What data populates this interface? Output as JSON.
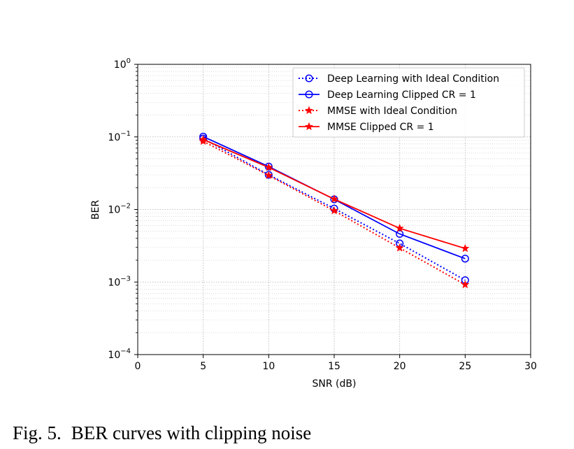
{
  "caption": {
    "label": "Fig. 5.",
    "text": "BER curves with clipping noise"
  },
  "chart_data": {
    "type": "line",
    "xlabel": "SNR (dB)",
    "ylabel": "BER",
    "xlim": [
      0,
      30
    ],
    "ylim": [
      0.0001,
      1
    ],
    "yscale": "log",
    "grid": true,
    "legend_position": "top-right",
    "x_ticks": [
      "0",
      "5",
      "10",
      "15",
      "20",
      "25",
      "30"
    ],
    "y_ticks": [
      {
        "base": "10",
        "exp": "0"
      },
      {
        "base": "10",
        "exp": "−1"
      },
      {
        "base": "10",
        "exp": "−2"
      },
      {
        "base": "10",
        "exp": "−3"
      },
      {
        "base": "10",
        "exp": "−4"
      }
    ],
    "x": [
      5,
      10,
      15,
      20,
      25
    ],
    "series": [
      {
        "name": "Deep Learning with Ideal Condition",
        "color": "#0000ff",
        "linestyle": "dotted",
        "marker": "circle",
        "values": [
          0.095,
          0.03,
          0.0103,
          0.0034,
          0.00106
        ]
      },
      {
        "name": "Deep Learning Clipped CR = 1",
        "color": "#0000ff",
        "linestyle": "solid",
        "marker": "circle",
        "values": [
          0.101,
          0.039,
          0.0138,
          0.0046,
          0.0021
        ]
      },
      {
        "name": "MMSE with Ideal Condition",
        "color": "#ff0000",
        "linestyle": "dotted",
        "marker": "star",
        "values": [
          0.087,
          0.0295,
          0.0096,
          0.00295,
          0.00092
        ]
      },
      {
        "name": "MMSE Clipped CR = 1",
        "color": "#ff0000",
        "linestyle": "solid",
        "marker": "star",
        "values": [
          0.092,
          0.038,
          0.0139,
          0.0055,
          0.0029
        ]
      }
    ]
  }
}
